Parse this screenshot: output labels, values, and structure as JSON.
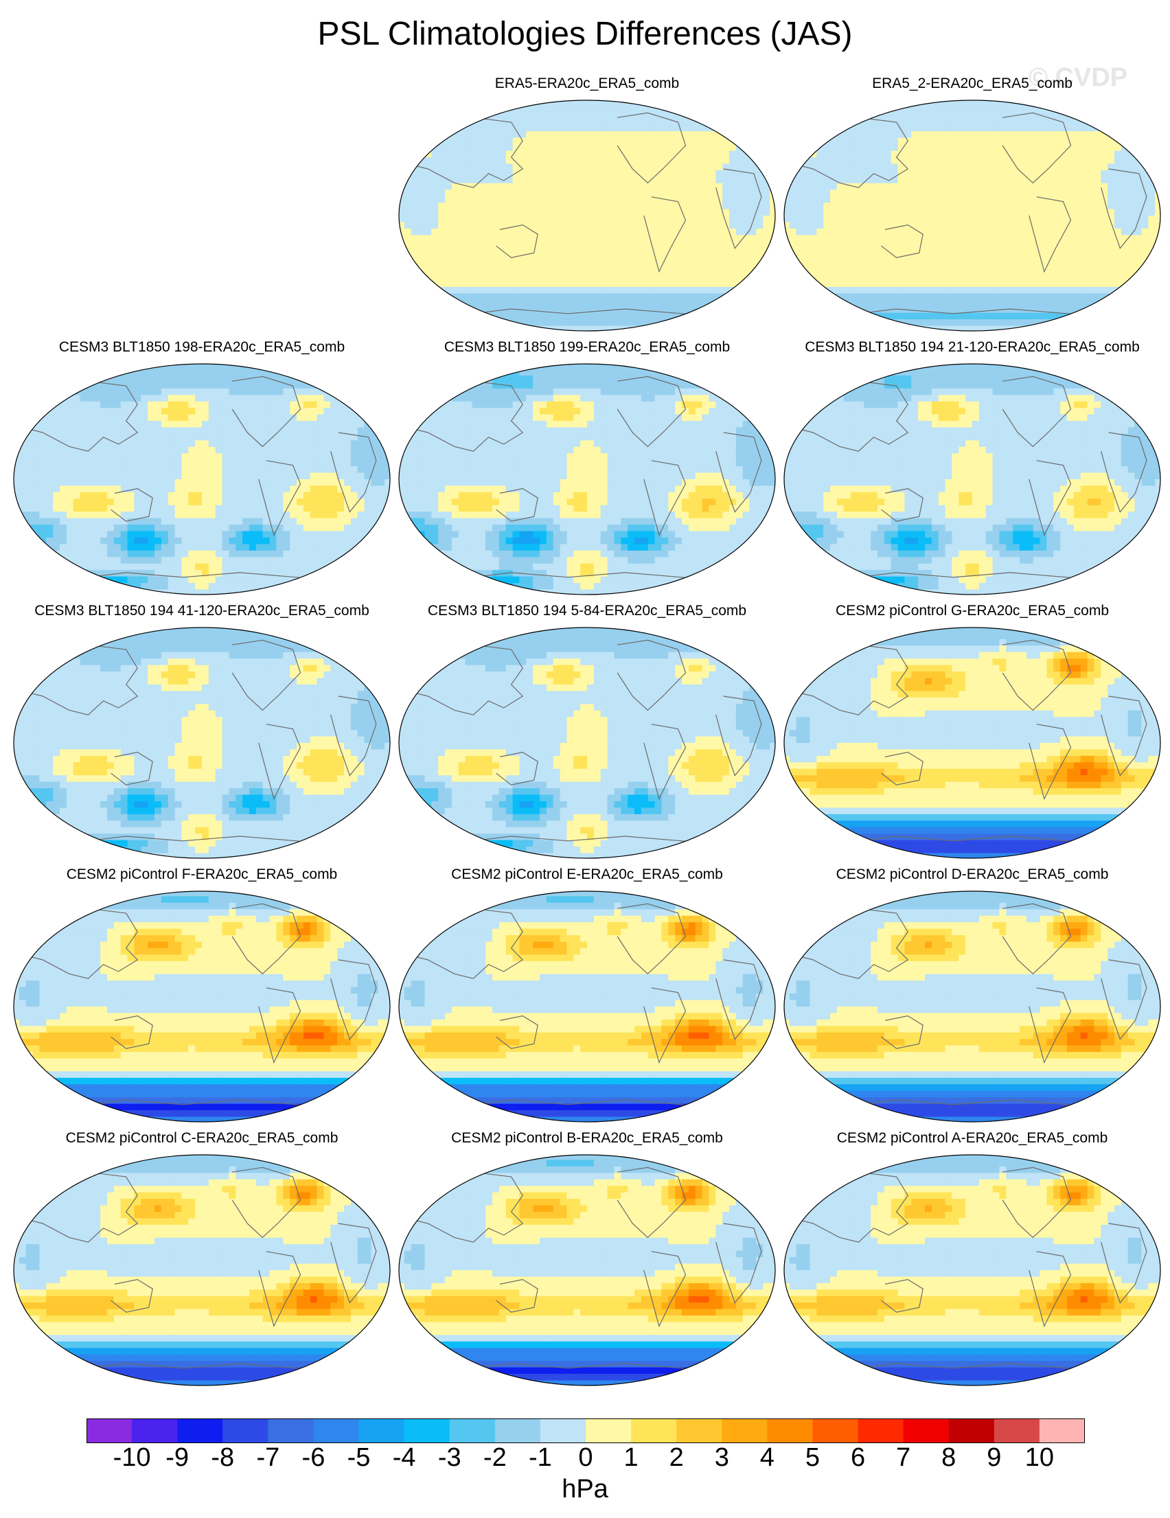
{
  "title": "PSL Climatologies Differences (JAS)",
  "watermark": "© CVDP",
  "panels": [
    {
      "label": "ERA5-ERA20c_ERA5_comb",
      "style": "obs",
      "amp": 0.6
    },
    {
      "label": "ERA5_2-ERA20c_ERA5_comb",
      "style": "obs",
      "amp": 0.7
    },
    {
      "label": "CESM3 BLT1850 198-ERA20c_ERA5_comb",
      "style": "cesm3",
      "amp": 1.0
    },
    {
      "label": "CESM3 BLT1850 199-ERA20c_ERA5_comb",
      "style": "cesm3",
      "amp": 1.1
    },
    {
      "label": "CESM3 BLT1850 194 21-120-ERA20c_ERA5_comb",
      "style": "cesm3",
      "amp": 1.05
    },
    {
      "label": "CESM3 BLT1850 194 41-120-ERA20c_ERA5_comb",
      "style": "cesm3",
      "amp": 1.0
    },
    {
      "label": "CESM3 BLT1850 194 5-84-ERA20c_ERA5_comb",
      "style": "cesm3",
      "amp": 1.0
    },
    {
      "label": "CESM2 piControl G-ERA20c_ERA5_comb",
      "style": "cesm2",
      "amp": 1.05
    },
    {
      "label": "CESM2 piControl F-ERA20c_ERA5_comb",
      "style": "cesm2",
      "amp": 1.1
    },
    {
      "label": "CESM2 piControl E-ERA20c_ERA5_comb",
      "style": "cesm2",
      "amp": 1.1
    },
    {
      "label": "CESM2 piControl D-ERA20c_ERA5_comb",
      "style": "cesm2",
      "amp": 1.05
    },
    {
      "label": "CESM2 piControl C-ERA20c_ERA5_comb",
      "style": "cesm2",
      "amp": 1.05
    },
    {
      "label": "CESM2 piControl B-ERA20c_ERA5_comb",
      "style": "cesm2",
      "amp": 1.1
    },
    {
      "label": "CESM2 piControl A-ERA20c_ERA5_comb",
      "style": "cesm2",
      "amp": 1.05
    }
  ],
  "colorbar": {
    "units": "hPa",
    "labels": [
      "-10",
      "-9",
      "-8",
      "-7",
      "-6",
      "-5",
      "-4",
      "-3",
      "-2",
      "-1",
      "0",
      "1",
      "2",
      "3",
      "4",
      "5",
      "6",
      "7",
      "8",
      "9",
      "10"
    ],
    "colors": [
      "#8a2be2",
      "#4b22ee",
      "#0e1ef0",
      "#2e4ae6",
      "#3a6fe3",
      "#2f86ee",
      "#16a3f4",
      "#0abcf8",
      "#55c6f0",
      "#96d0ee",
      "#bfe3f7",
      "#fff8a6",
      "#ffe45a",
      "#ffc830",
      "#ffaa10",
      "#ff8c00",
      "#ff5e00",
      "#ff2a00",
      "#f00000",
      "#c00000",
      "#d84848",
      "#ffb4b4"
    ]
  }
}
